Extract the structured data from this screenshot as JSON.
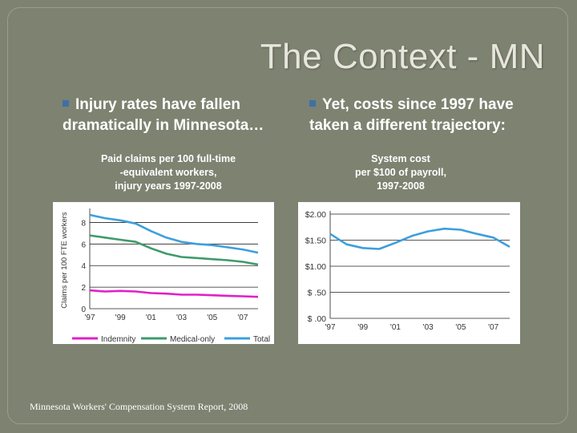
{
  "slide": {
    "title": "The Context - MN",
    "left_bullet": "Injury rates have fallen dramatically in Minnesota…",
    "right_bullet": "Yet, costs since 1997 have taken a different trajectory:",
    "left_subtitle_lines": [
      "Paid claims per 100 full-time",
      "-equivalent workers,",
      "injury years 1997-2008"
    ],
    "right_subtitle_lines": [
      "System cost",
      "per $100 of payroll,",
      "1997-2008"
    ],
    "source": "Minnesota Workers' Compensation System Report, 2008"
  },
  "chart_data": [
    {
      "type": "line",
      "title": "Paid claims per 100 full-time-equivalent workers, injury years 1997-2008",
      "ylabel": "Claims per 100 FTE workers",
      "ylim": [
        0,
        9
      ],
      "yticks": [
        0,
        2,
        4,
        6,
        8
      ],
      "x": [
        1997,
        1998,
        1999,
        2000,
        2001,
        2002,
        2003,
        2004,
        2005,
        2006,
        2007,
        2008
      ],
      "xtick_labels": [
        "'97",
        "'99",
        "'01",
        "'03",
        "'05",
        "'07"
      ],
      "xtick_years": [
        1997,
        1999,
        2001,
        2003,
        2005,
        2007
      ],
      "series": [
        {
          "name": "Indemnity",
          "color": "#e020c8",
          "values": [
            1.7,
            1.6,
            1.65,
            1.6,
            1.45,
            1.4,
            1.3,
            1.3,
            1.25,
            1.2,
            1.15,
            1.1
          ]
        },
        {
          "name": "Medical-only",
          "color": "#3f9a6c",
          "values": [
            6.8,
            6.6,
            6.4,
            6.2,
            5.6,
            5.1,
            4.8,
            4.7,
            4.6,
            4.5,
            4.35,
            4.1
          ]
        },
        {
          "name": "Total",
          "color": "#3d9fdc",
          "values": [
            8.7,
            8.4,
            8.2,
            7.9,
            7.2,
            6.6,
            6.2,
            6.0,
            5.9,
            5.7,
            5.5,
            5.2
          ]
        }
      ]
    },
    {
      "type": "line",
      "title": "System cost per $100 of payroll, 1997-2008",
      "ylabel": "",
      "ylim": [
        0,
        2
      ],
      "yticks": [
        0,
        0.5,
        1.0,
        1.5,
        2.0
      ],
      "ytick_labels": [
        "$ .00",
        "$ .50",
        "$1.00",
        "$1.50",
        "$2.00"
      ],
      "x": [
        1997,
        1998,
        1999,
        2000,
        2001,
        2002,
        2003,
        2004,
        2005,
        2006,
        2007,
        2008
      ],
      "xtick_labels": [
        "'97",
        "'99",
        "'01",
        "'03",
        "'05",
        "'07"
      ],
      "xtick_years": [
        1997,
        1999,
        2001,
        2003,
        2005,
        2007
      ],
      "series": [
        {
          "name": "System cost",
          "color": "#3d9fdc",
          "values": [
            1.62,
            1.42,
            1.35,
            1.33,
            1.45,
            1.58,
            1.67,
            1.72,
            1.7,
            1.62,
            1.55,
            1.37
          ]
        }
      ]
    }
  ]
}
